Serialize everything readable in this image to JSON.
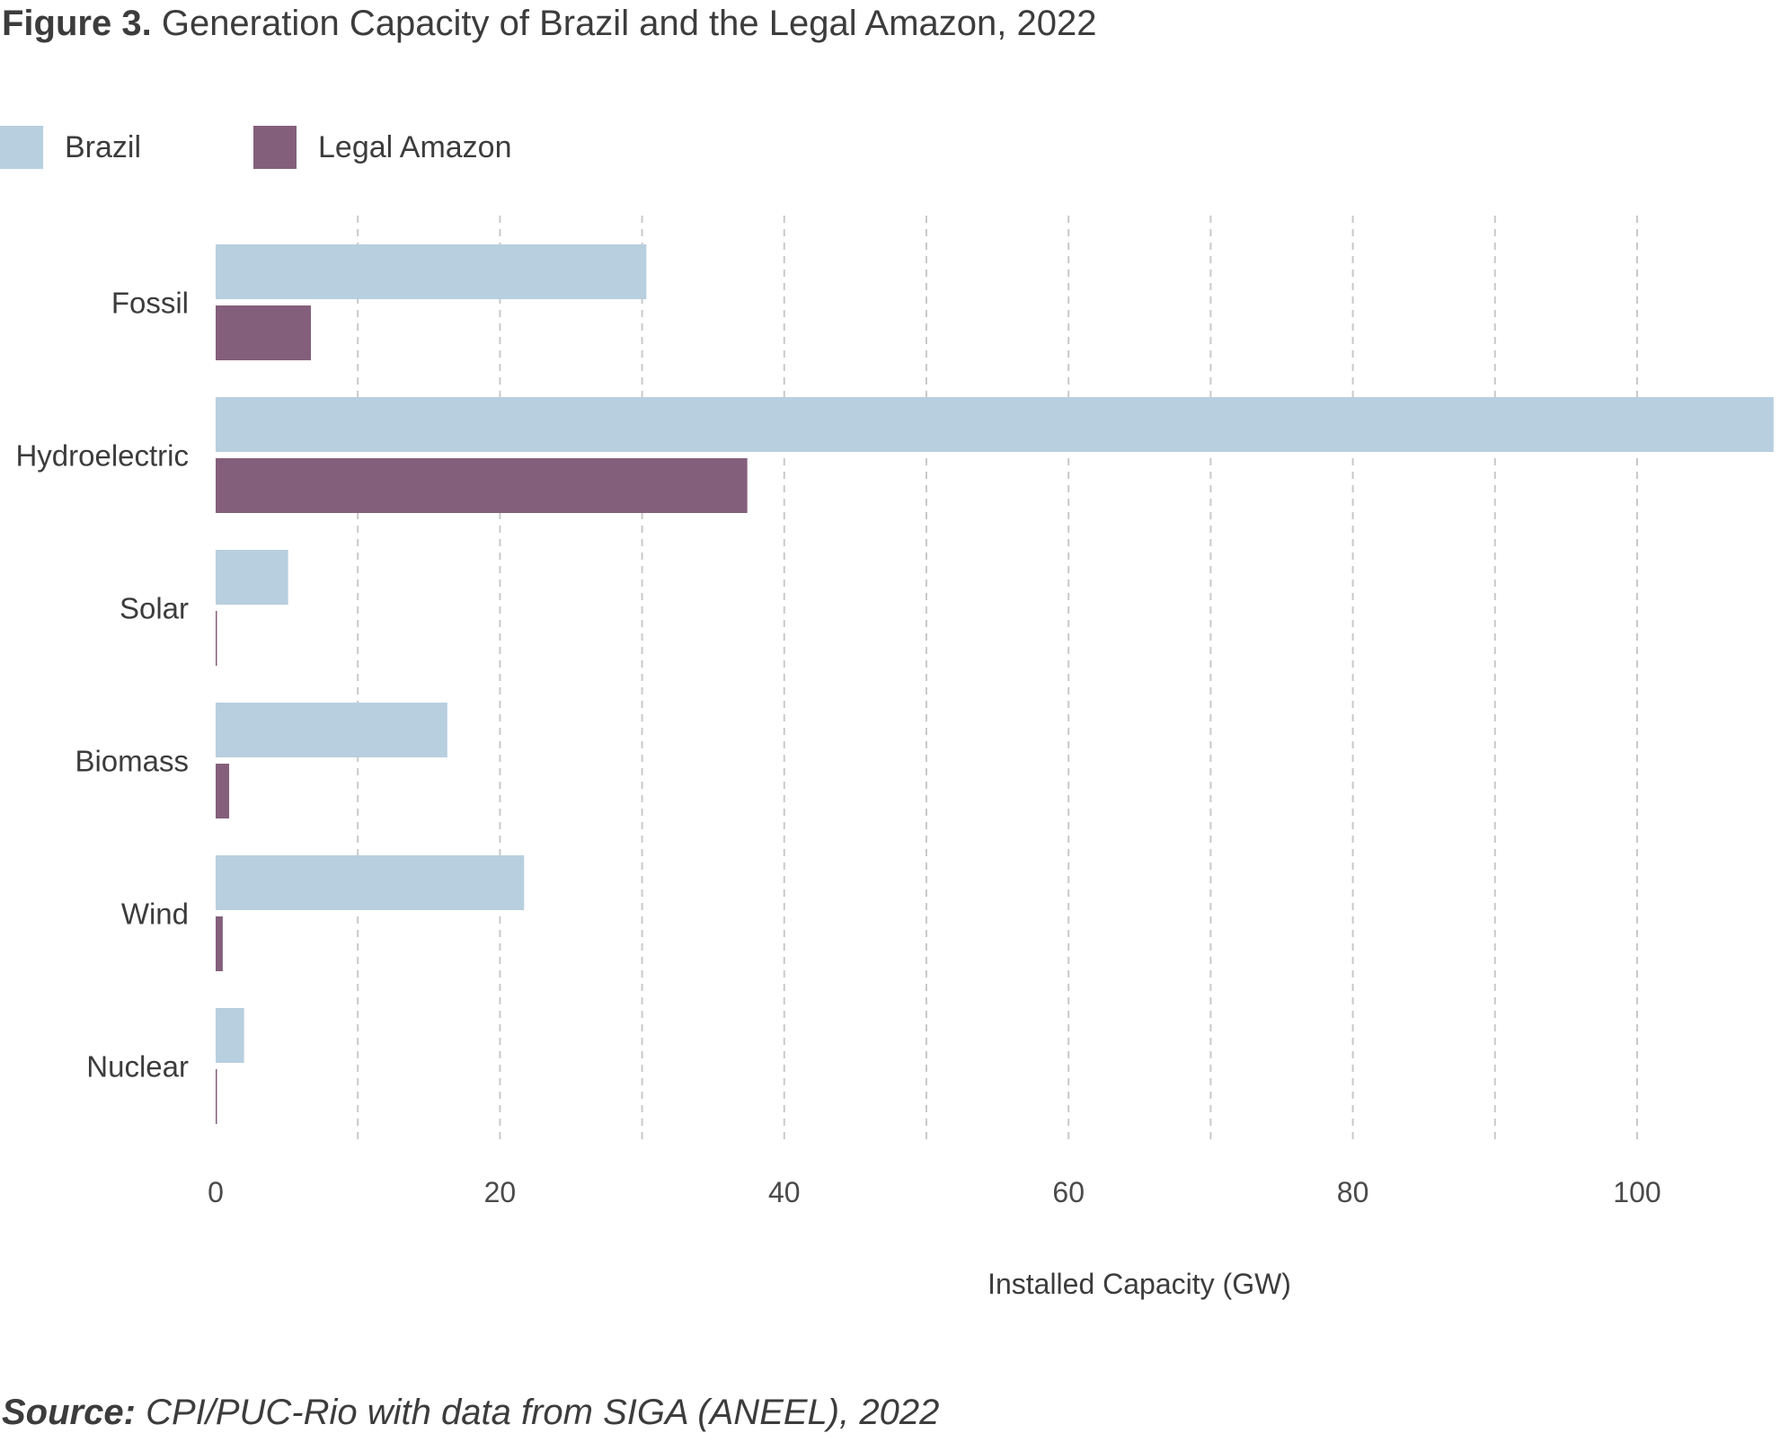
{
  "figure": {
    "label": "Figure 3.",
    "title": "Generation Capacity of Brazil and the Legal Amazon, 2022"
  },
  "source": {
    "label": "Source:",
    "text": "CPI/PUC-Rio with data from SIGA (ANEEL), 2022"
  },
  "chart_data": {
    "type": "bar",
    "orientation": "horizontal",
    "title": "Generation Capacity of Brazil and the Legal Amazon, 2022",
    "xlabel": "Installed Capacity (GW)",
    "ylabel": "",
    "categories": [
      "Fossil",
      "Hydroelectric",
      "Solar",
      "Biomass",
      "Wind",
      "Nuclear"
    ],
    "series": [
      {
        "name": "Brazil",
        "color": "#b8cfdf",
        "values": [
          30.3,
          109.6,
          5.1,
          16.3,
          21.7,
          2.0
        ]
      },
      {
        "name": "Legal Amazon",
        "color": "#845f7c",
        "values": [
          6.7,
          37.4,
          0.05,
          0.95,
          0.5,
          0.0
        ]
      }
    ],
    "xlim": [
      0,
      110
    ],
    "xticks": [
      0,
      20,
      40,
      60,
      80,
      100
    ],
    "gridlines": [
      10,
      20,
      30,
      40,
      50,
      60,
      70,
      80,
      90,
      100
    ],
    "grid": true,
    "grid_style": "dashed-vertical",
    "legend_position": "top-left"
  }
}
